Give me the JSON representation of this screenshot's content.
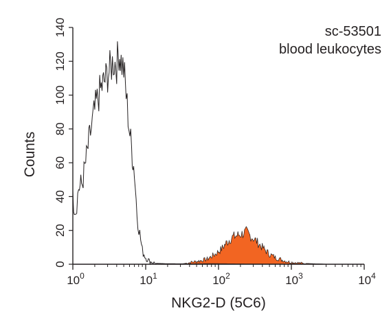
{
  "chart_data": {
    "type": "area",
    "xlabel": "NKG2-D (5C6)",
    "ylabel": "Counts",
    "x_scale": "log",
    "xlim": [
      1,
      10000
    ],
    "ylim": [
      0,
      140
    ],
    "x_ticks": [
      {
        "value": 1,
        "base": "10",
        "exp": "0"
      },
      {
        "value": 10,
        "base": "10",
        "exp": "1"
      },
      {
        "value": 100,
        "base": "10",
        "exp": "2"
      },
      {
        "value": 1000,
        "base": "10",
        "exp": "3"
      },
      {
        "value": 10000,
        "base": "10",
        "exp": "4"
      }
    ],
    "y_ticks": [
      0,
      20,
      40,
      60,
      80,
      100,
      120,
      140
    ],
    "annotations": [
      "sc-53501",
      "blood leukocytes"
    ],
    "grid": false,
    "series": [
      {
        "style": "outline",
        "color": "#231f20",
        "points": [
          [
            1.0,
            38
          ],
          [
            1.1,
            32
          ],
          [
            1.2,
            45
          ],
          [
            1.35,
            48
          ],
          [
            1.5,
            60
          ],
          [
            1.7,
            75
          ],
          [
            1.9,
            86
          ],
          [
            2.1,
            95
          ],
          [
            2.4,
            103
          ],
          [
            2.7,
            108
          ],
          [
            3.0,
            112
          ],
          [
            3.3,
            116
          ],
          [
            3.6,
            120
          ],
          [
            4.0,
            118
          ],
          [
            4.3,
            126
          ],
          [
            4.6,
            120
          ],
          [
            5.0,
            115
          ],
          [
            5.4,
            100
          ],
          [
            5.9,
            82
          ],
          [
            6.4,
            68
          ],
          [
            7.0,
            55
          ],
          [
            7.6,
            30
          ],
          [
            8.3,
            18
          ],
          [
            9.0,
            8
          ],
          [
            10.0,
            4
          ],
          [
            11.5,
            1.5
          ],
          [
            14,
            0.5
          ],
          [
            20,
            0.3
          ],
          [
            40,
            0.2
          ],
          [
            80,
            0.3
          ],
          [
            150,
            0.2
          ],
          [
            300,
            0.1
          ],
          [
            600,
            0.1
          ],
          [
            1200,
            0.1
          ],
          [
            2500,
            0.1
          ],
          [
            3000,
            0
          ]
        ]
      },
      {
        "style": "filled",
        "color": "#f26522",
        "points": [
          [
            30,
            0
          ],
          [
            40,
            1
          ],
          [
            55,
            2
          ],
          [
            70,
            3
          ],
          [
            90,
            6
          ],
          [
            110,
            9
          ],
          [
            130,
            13
          ],
          [
            155,
            16
          ],
          [
            180,
            17
          ],
          [
            210,
            18
          ],
          [
            240,
            19
          ],
          [
            270,
            17
          ],
          [
            310,
            15
          ],
          [
            360,
            12
          ],
          [
            420,
            9
          ],
          [
            500,
            6
          ],
          [
            600,
            4
          ],
          [
            750,
            2.5
          ],
          [
            900,
            1.5
          ],
          [
            1100,
            1
          ],
          [
            1400,
            0.6
          ],
          [
            1800,
            0.4
          ],
          [
            2500,
            0.2
          ],
          [
            3000,
            0
          ]
        ]
      }
    ]
  }
}
